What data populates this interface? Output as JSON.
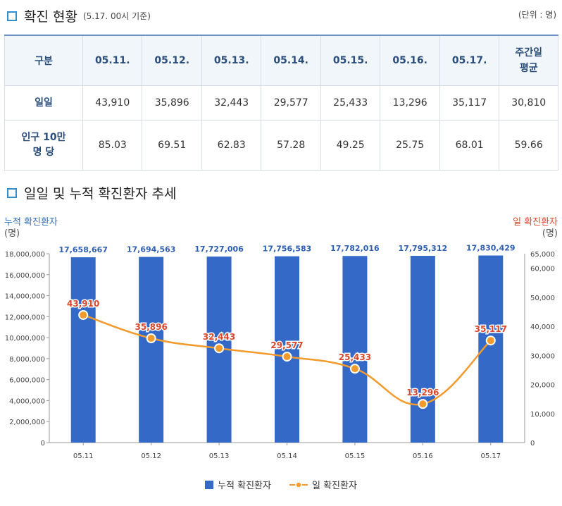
{
  "section1": {
    "title": "확진 현황",
    "note": "(5.17. 00시 기준)",
    "unit": "(단위 : 명)"
  },
  "table": {
    "corner": "구분",
    "headers": [
      "05.11.",
      "05.12.",
      "05.13.",
      "05.14.",
      "05.15.",
      "05.16.",
      "05.17."
    ],
    "avg_header_line1": "주간일",
    "avg_header_line2": "평균",
    "rows": [
      {
        "label_line1": "일일",
        "label_line2": "",
        "values": [
          "43,910",
          "35,896",
          "32,443",
          "29,577",
          "25,433",
          "13,296",
          "35,117",
          "30,810"
        ]
      },
      {
        "label_line1": "인구 10만",
        "label_line2": "명 당",
        "values": [
          "85.03",
          "69.51",
          "62.83",
          "57.28",
          "49.25",
          "25.75",
          "68.01",
          "59.66"
        ]
      }
    ]
  },
  "section2": {
    "title": "일일 및 누적 확진환자 추세"
  },
  "chart_data": {
    "type": "bar",
    "categories": [
      "05.11",
      "05.12",
      "05.13",
      "05.14",
      "05.15",
      "05.16",
      "05.17"
    ],
    "series": [
      {
        "name": "누적 확진환자",
        "type": "bar",
        "axis": "left",
        "values": [
          17658667,
          17694563,
          17727006,
          17756583,
          17782016,
          17795312,
          17830429
        ],
        "labels": [
          "17,658,667",
          "17,694,563",
          "17,727,006",
          "17,756,583",
          "17,782,016",
          "17,795,312",
          "17,830,429"
        ],
        "color": "#3569c8"
      },
      {
        "name": "일 확진환자",
        "type": "line",
        "axis": "right",
        "values": [
          43910,
          35896,
          32443,
          29577,
          25433,
          13296,
          35117
        ],
        "labels": [
          "43,910",
          "35,896",
          "32,443",
          "29,577",
          "25,433",
          "13,296",
          "35,117"
        ],
        "color": "#f39a2c",
        "label_color": "#d9472b"
      }
    ],
    "left_axis": {
      "title_line1": "누적 확진환자",
      "title_line2": "(명)",
      "min": 0,
      "max": 18000000,
      "ticks": [
        "0",
        "2,000,000",
        "4,000,000",
        "6,000,000",
        "8,000,000",
        "10,000,000",
        "12,000,000",
        "14,000,000",
        "16,000,000",
        "18,000,000"
      ],
      "title_color": "#2f6fb8"
    },
    "right_axis": {
      "title_line1": "일 확진환자",
      "title_line2": "(명)",
      "min": 0,
      "max": 65000,
      "ticks": [
        "0",
        "10,000",
        "20,000",
        "30,000",
        "40,000",
        "50,000",
        "60,000",
        "65,000"
      ],
      "tick_values": [
        0,
        10000,
        20000,
        30000,
        40000,
        50000,
        60000,
        65000
      ],
      "title_color": "#d9472b"
    },
    "legend": [
      "누적 확진환자",
      "일 확진환자"
    ],
    "legend_position": "bottom"
  }
}
